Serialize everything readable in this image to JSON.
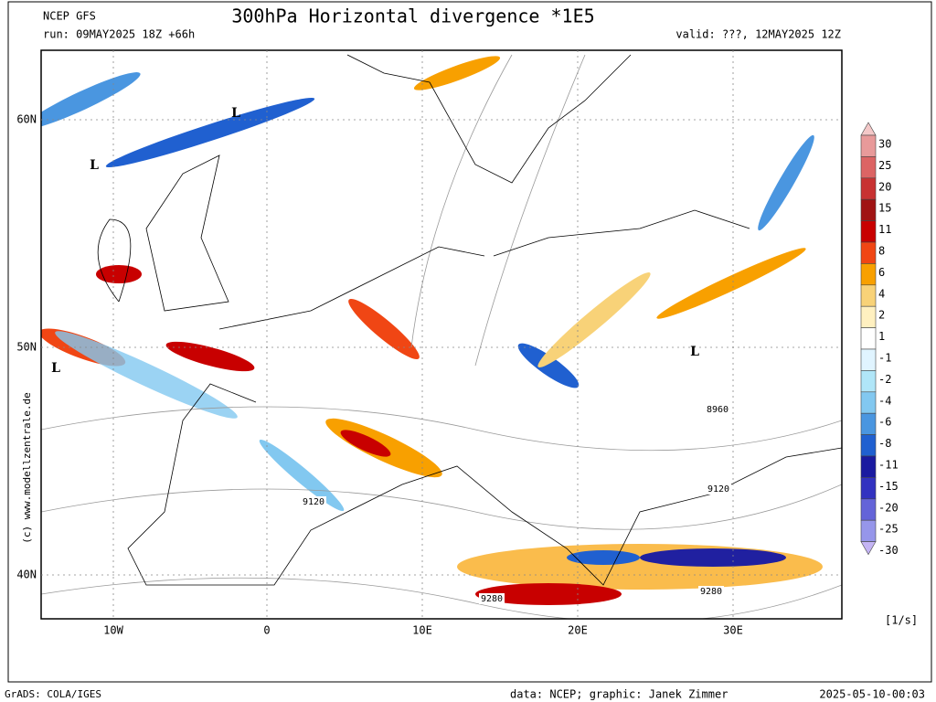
{
  "header": {
    "model": "NCEP GFS",
    "run": "run: 09MAY2025 18Z +66h",
    "title": "300hPa Horizontal divergence *1E5",
    "valid": "valid: ???, 12MAY2025 12Z"
  },
  "map": {
    "lat_labels": [
      "60N",
      "50N",
      "40N"
    ],
    "lon_labels": [
      "10W",
      "0",
      "10E",
      "20E",
      "30E"
    ],
    "contour_labels": [
      "8960",
      "9120",
      "9120",
      "9280",
      "9280"
    ],
    "lows": [
      "L",
      "L",
      "L",
      "L"
    ],
    "credit": "(c) www.modellzentrale.de"
  },
  "colorbar": {
    "levels": [
      "30",
      "25",
      "20",
      "15",
      "11",
      "8",
      "6",
      "4",
      "2",
      "1",
      "-1",
      "-2",
      "-4",
      "-6",
      "-8",
      "-11",
      "-15",
      "-20",
      "-25",
      "-30"
    ],
    "colors": [
      "#f4c8c8",
      "#e89a9a",
      "#dc6464",
      "#c83232",
      "#a01414",
      "#c80000",
      "#f04614",
      "#f8a000",
      "#f8d278",
      "#fff0c0",
      "#ffffff",
      "#e0f4ff",
      "#b0e6f8",
      "#82c8f0",
      "#4a96e0",
      "#2060d0",
      "#1a1aa0",
      "#3232c0",
      "#6464d8",
      "#9696ea",
      "#c4b4f4"
    ],
    "unit": "[1/s]"
  },
  "footer": {
    "software": "GrADS: COLA/IGES",
    "credit": "data: NCEP; graphic: Janek Zimmer",
    "timestamp": "2025-05-10-00:03"
  }
}
